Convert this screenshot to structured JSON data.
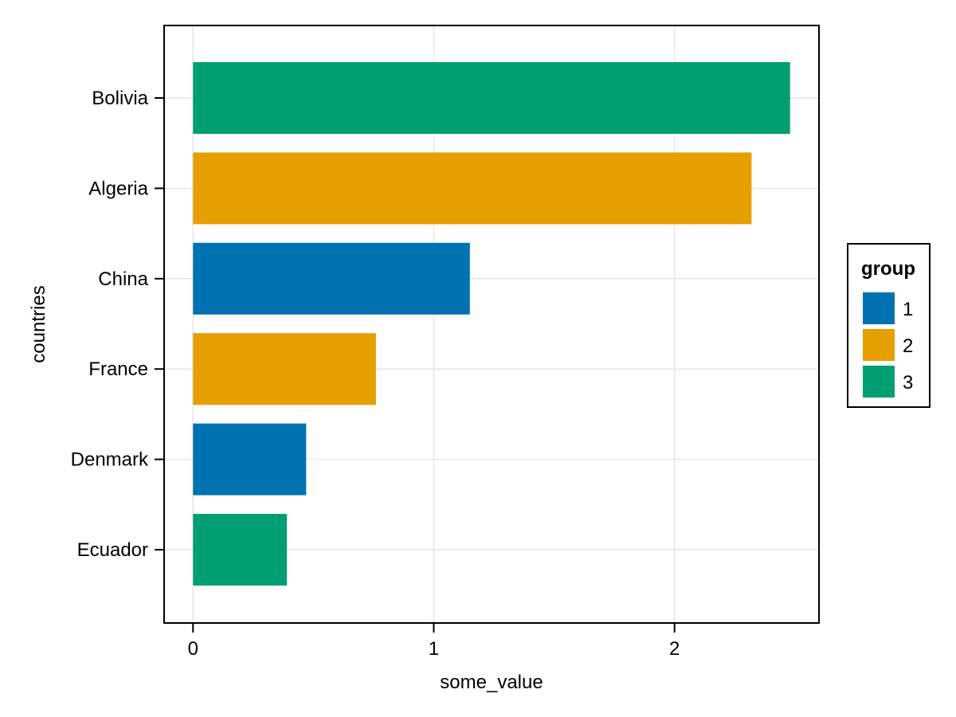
{
  "chart_data": {
    "type": "bar",
    "orientation": "horizontal",
    "title": "",
    "xlabel": "some_value",
    "ylabel": "countries",
    "xlim": [
      -0.12,
      2.6
    ],
    "xticks": [
      0,
      1,
      2
    ],
    "grid": true,
    "legend_position": "right",
    "legend": {
      "title": "group",
      "entries": [
        {
          "label": "1",
          "color": "#0072b2"
        },
        {
          "label": "2",
          "color": "#e69f00"
        },
        {
          "label": "3",
          "color": "#009e73"
        }
      ]
    },
    "categories": [
      "Bolivia",
      "Algeria",
      "China",
      "France",
      "Denmark",
      "Ecuador"
    ],
    "values": [
      2.48,
      2.32,
      1.15,
      0.76,
      0.47,
      0.39
    ],
    "groups": [
      "3",
      "2",
      "1",
      "2",
      "1",
      "3"
    ]
  }
}
